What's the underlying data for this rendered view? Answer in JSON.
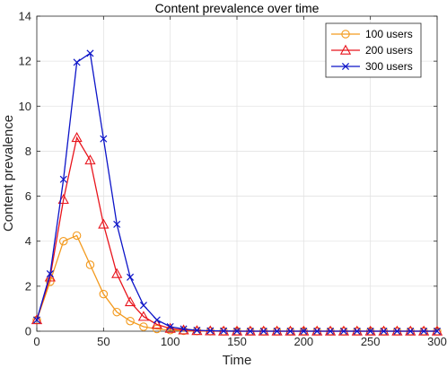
{
  "chart_data": {
    "type": "line",
    "title": "Content prevalence over time",
    "xlabel": "Time",
    "ylabel": "Content prevalence",
    "xlim": [
      0,
      300
    ],
    "ylim": [
      0,
      14
    ],
    "xticks": [
      0,
      50,
      100,
      150,
      200,
      250,
      300
    ],
    "yticks": [
      0,
      2,
      4,
      6,
      8,
      10,
      12,
      14
    ],
    "grid": true,
    "legend_position": "top-right",
    "x": [
      0,
      10,
      20,
      30,
      40,
      50,
      60,
      70,
      80,
      90,
      100,
      110,
      120,
      130,
      140,
      150,
      160,
      170,
      180,
      190,
      200,
      210,
      220,
      230,
      240,
      250,
      260,
      270,
      280,
      290,
      300
    ],
    "series": [
      {
        "name": "100 users",
        "color": "#f39a1e",
        "marker": "circle",
        "values": [
          0.5,
          2.2,
          4.0,
          4.25,
          2.95,
          1.65,
          0.85,
          0.45,
          0.2,
          0.1,
          0.05,
          0.02,
          0.01,
          0,
          0,
          0,
          0,
          0,
          0,
          0,
          0,
          0,
          0,
          0,
          0,
          0,
          0,
          0,
          0,
          0,
          0
        ]
      },
      {
        "name": "200 users",
        "color": "#e8141c",
        "marker": "triangle",
        "values": [
          0.5,
          2.4,
          5.85,
          8.6,
          7.6,
          4.75,
          2.55,
          1.3,
          0.65,
          0.3,
          0.12,
          0.05,
          0.02,
          0.01,
          0,
          0,
          0,
          0,
          0,
          0,
          0,
          0,
          0,
          0,
          0,
          0,
          0,
          0,
          0,
          0,
          0
        ]
      },
      {
        "name": "300 users",
        "color": "#0c14c8",
        "marker": "x",
        "values": [
          0.5,
          2.55,
          6.75,
          11.95,
          12.35,
          8.55,
          4.75,
          2.4,
          1.15,
          0.5,
          0.2,
          0.1,
          0.04,
          0.02,
          0.01,
          0,
          0,
          0,
          0,
          0,
          0,
          0,
          0,
          0,
          0,
          0,
          0,
          0,
          0,
          0,
          0
        ]
      }
    ]
  }
}
